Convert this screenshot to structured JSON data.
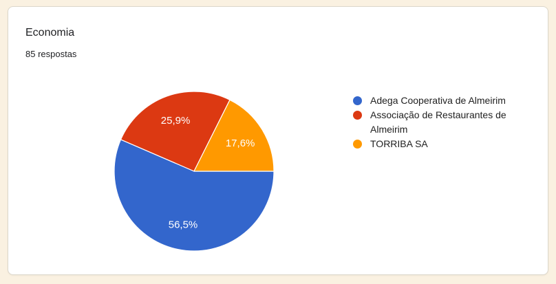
{
  "page": {
    "background_color": "#faf1e1"
  },
  "card": {
    "title": "Economia",
    "subtitle": "85 respostas"
  },
  "chart_data": {
    "type": "pie",
    "title": "Economia",
    "subtitle": "85 respostas",
    "legend_position": "right",
    "start_angle_deg": 0,
    "direction": "clockwise",
    "separator_color": "#ffffff",
    "label_text_color": "#ffffff",
    "slices": [
      {
        "label": "Adega Cooperativa de Almeirim",
        "pct": 56.5,
        "pct_label": "56,5%",
        "color": "#3366cc"
      },
      {
        "label": "Associação de Restaurantes de Almeirim",
        "pct": 25.9,
        "pct_label": "25,9%",
        "color": "#dc3912"
      },
      {
        "label": "TORRIBA SA",
        "pct": 17.6,
        "pct_label": "17,6%",
        "color": "#ff9900"
      }
    ]
  }
}
